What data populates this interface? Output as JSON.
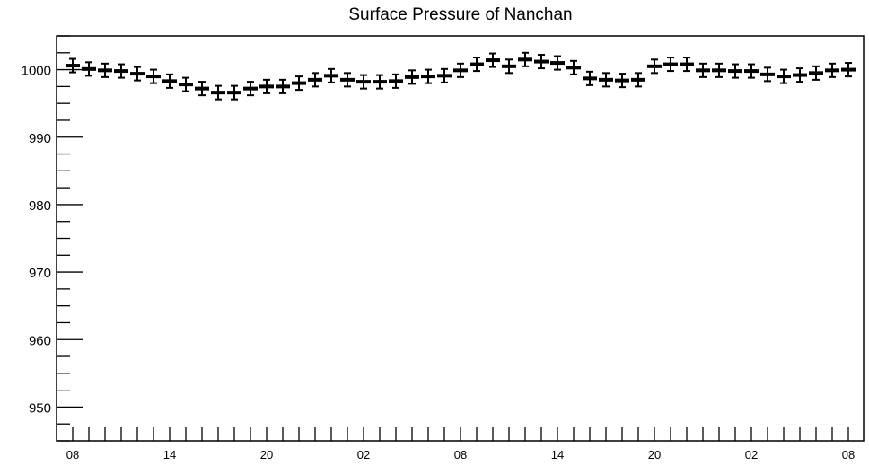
{
  "chart_data": {
    "type": "scatter",
    "title": "Surface Pressure of Nanchan",
    "xlabel": "",
    "ylabel": "",
    "ylim": [
      945,
      1005
    ],
    "grid": false,
    "legend": "none",
    "y_ticks": [
      950,
      960,
      970,
      980,
      990,
      1000
    ],
    "x_tick_labels": [
      "08",
      "14",
      "20",
      "02",
      "08",
      "14",
      "20",
      "02",
      "08"
    ],
    "x_label_every_n_points": 6,
    "marker_color": "#000000",
    "error_bar": 1,
    "series": [
      {
        "values": [
          1000.6,
          1000.1,
          999.9,
          999.8,
          999.4,
          999.0,
          998.3,
          997.8,
          997.2,
          996.6,
          996.6,
          997.2,
          997.5,
          997.5,
          998.0,
          998.5,
          999.1,
          998.5,
          998.2,
          998.2,
          998.3,
          998.9,
          999.0,
          999.1,
          999.9,
          1000.8,
          1001.4,
          1000.5,
          1001.5,
          1001.2,
          1001.0,
          1000.3,
          998.7,
          998.5,
          998.4,
          998.5,
          1000.5,
          1000.8,
          1000.8,
          999.9,
          999.9,
          999.8,
          999.8,
          999.3,
          999.0,
          999.2,
          999.5,
          999.9,
          1000.0
        ]
      }
    ]
  }
}
